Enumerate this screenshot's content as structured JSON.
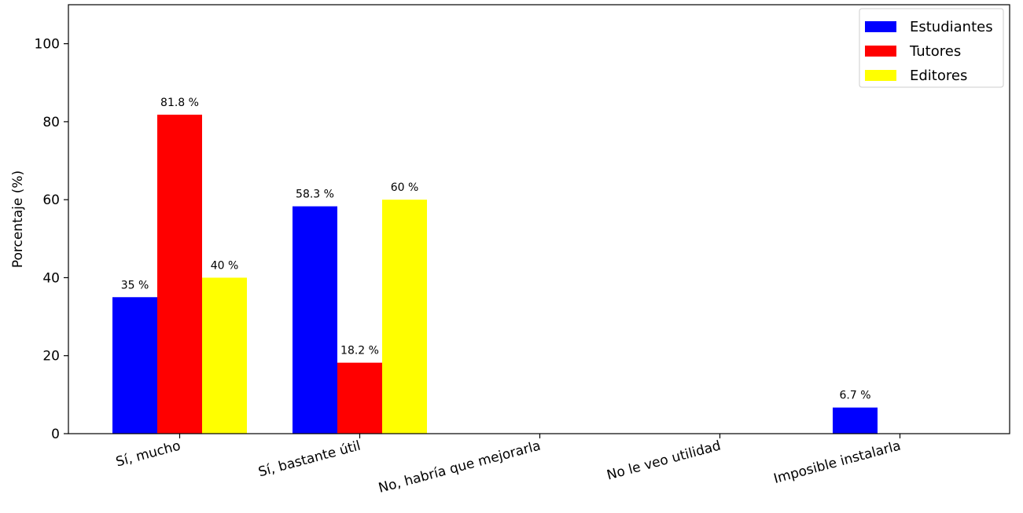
{
  "chart_data": {
    "type": "bar",
    "title": "",
    "xlabel": "",
    "ylabel": "Porcentaje (%)",
    "ylim": [
      0,
      110
    ],
    "yticks": [
      0,
      20,
      40,
      60,
      80,
      100
    ],
    "categories": [
      "Sí, mucho",
      "Sí, bastante útil",
      "No, habría que mejorarla",
      "No le veo utilidad",
      "Imposible instalarla"
    ],
    "series": [
      {
        "name": "Estudiantes",
        "color": "#0000ff",
        "values": [
          35,
          58.3,
          0,
          0,
          6.7
        ],
        "labels": [
          "35 %",
          "58.3 %",
          "",
          "",
          "6.7 %"
        ]
      },
      {
        "name": "Tutores",
        "color": "#ff0000",
        "values": [
          81.8,
          18.2,
          0,
          0,
          0
        ],
        "labels": [
          "81.8 %",
          "18.2 %",
          "",
          "",
          ""
        ]
      },
      {
        "name": "Editores",
        "color": "#ffff00",
        "values": [
          40,
          60,
          0,
          0,
          0
        ],
        "labels": [
          "40 %",
          "60 %",
          "",
          "",
          ""
        ]
      }
    ],
    "grid": false,
    "legend": "top-right"
  }
}
